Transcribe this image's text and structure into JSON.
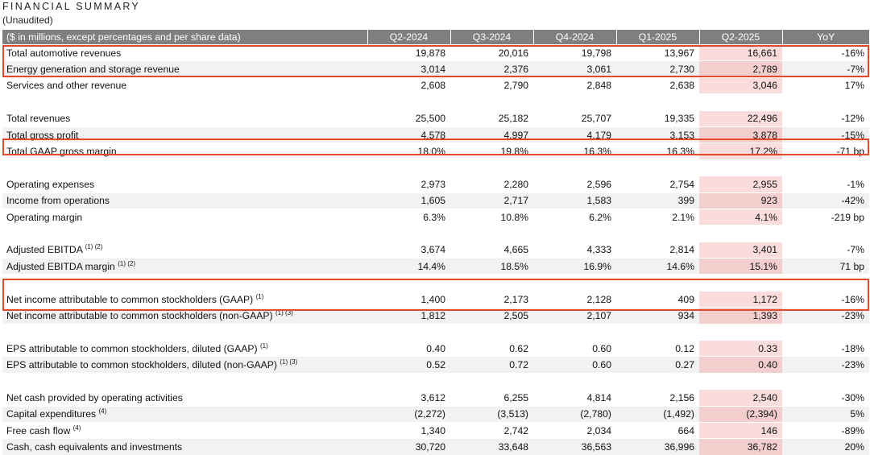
{
  "header": {
    "title": "FINANCIAL SUMMARY",
    "subtitle": "(Unaudited)"
  },
  "table": {
    "columns": [
      "($ in millions, except percentages and per share data)",
      "Q2-2024",
      "Q3-2024",
      "Q4-2024",
      "Q1-2025",
      "Q2-2025",
      "YoY"
    ],
    "rows": [
      {
        "label": "Total automotive revenues",
        "sup": "",
        "values": [
          "19,878",
          "20,016",
          "19,798",
          "13,967",
          "16,661",
          "-16%"
        ]
      },
      {
        "label": "Energy generation and storage revenue",
        "sup": "",
        "values": [
          "3,014",
          "2,376",
          "3,061",
          "2,730",
          "2,789",
          "-7%"
        ]
      },
      {
        "label": "Services and other revenue",
        "sup": "",
        "values": [
          "2,608",
          "2,790",
          "2,848",
          "2,638",
          "3,046",
          "17%"
        ]
      },
      {
        "spacer": true
      },
      {
        "label": "Total revenues",
        "sup": "",
        "values": [
          "25,500",
          "25,182",
          "25,707",
          "19,335",
          "22,496",
          "-12%"
        ]
      },
      {
        "label": "Total gross profit",
        "sup": "",
        "values": [
          "4,578",
          "4,997",
          "4,179",
          "3,153",
          "3,878",
          "-15%"
        ]
      },
      {
        "label": "Total GAAP gross margin",
        "sup": "",
        "values": [
          "18.0%",
          "19.8%",
          "16.3%",
          "16.3%",
          "17.2%",
          "-71 bp"
        ]
      },
      {
        "spacer": true
      },
      {
        "label": "Operating expenses",
        "sup": "",
        "values": [
          "2,973",
          "2,280",
          "2,596",
          "2,754",
          "2,955",
          "-1%"
        ]
      },
      {
        "label": "Income from operations",
        "sup": "",
        "values": [
          "1,605",
          "2,717",
          "1,583",
          "399",
          "923",
          "-42%"
        ]
      },
      {
        "label": "Operating margin",
        "sup": "",
        "values": [
          "6.3%",
          "10.8%",
          "6.2%",
          "2.1%",
          "4.1%",
          "-219 bp"
        ]
      },
      {
        "spacer": true
      },
      {
        "label": "Adjusted EBITDA",
        "sup": "(1) (2)",
        "values": [
          "3,674",
          "4,665",
          "4,333",
          "2,814",
          "3,401",
          "-7%"
        ]
      },
      {
        "label": "Adjusted EBITDA margin",
        "sup": "(1) (2)",
        "values": [
          "14.4%",
          "18.5%",
          "16.9%",
          "14.6%",
          "15.1%",
          "71 bp"
        ]
      },
      {
        "spacer": true
      },
      {
        "label": "Net income attributable to common stockholders (GAAP)",
        "sup": "(1)",
        "values": [
          "1,400",
          "2,173",
          "2,128",
          "409",
          "1,172",
          "-16%"
        ]
      },
      {
        "label": "Net income attributable to common stockholders (non-GAAP)",
        "sup": "(1) (3)",
        "values": [
          "1,812",
          "2,505",
          "2,107",
          "934",
          "1,393",
          "-23%"
        ]
      },
      {
        "spacer": true
      },
      {
        "label": "EPS attributable to common stockholders, diluted (GAAP)",
        "sup": "(1)",
        "values": [
          "0.40",
          "0.62",
          "0.60",
          "0.12",
          "0.33",
          "-18%"
        ]
      },
      {
        "label": "EPS attributable to common stockholders, diluted (non-GAAP)",
        "sup": "(1) (3)",
        "values": [
          "0.52",
          "0.72",
          "0.60",
          "0.27",
          "0.40",
          "-23%"
        ]
      },
      {
        "spacer": true
      },
      {
        "label": "Net cash provided by operating activities",
        "sup": "",
        "values": [
          "3,612",
          "6,255",
          "4,814",
          "2,156",
          "2,540",
          "-30%"
        ]
      },
      {
        "label": "Capital expenditures",
        "sup": "(4)",
        "values": [
          "(2,272)",
          "(3,513)",
          "(2,780)",
          "(1,492)",
          "(2,394)",
          "5%"
        ]
      },
      {
        "label": "Free cash flow",
        "sup": "(4)",
        "values": [
          "1,340",
          "2,742",
          "2,034",
          "664",
          "146",
          "-89%"
        ]
      },
      {
        "label": "Cash, cash equivalents and investments",
        "sup": "",
        "values": [
          "30,720",
          "33,648",
          "36,563",
          "36,996",
          "36,782",
          "20%"
        ]
      }
    ],
    "highlight_column_index": 5,
    "highlight_color": "#f9dcdb",
    "header_bg": "#7f7f7f",
    "outline_color": "#e34a2b"
  }
}
